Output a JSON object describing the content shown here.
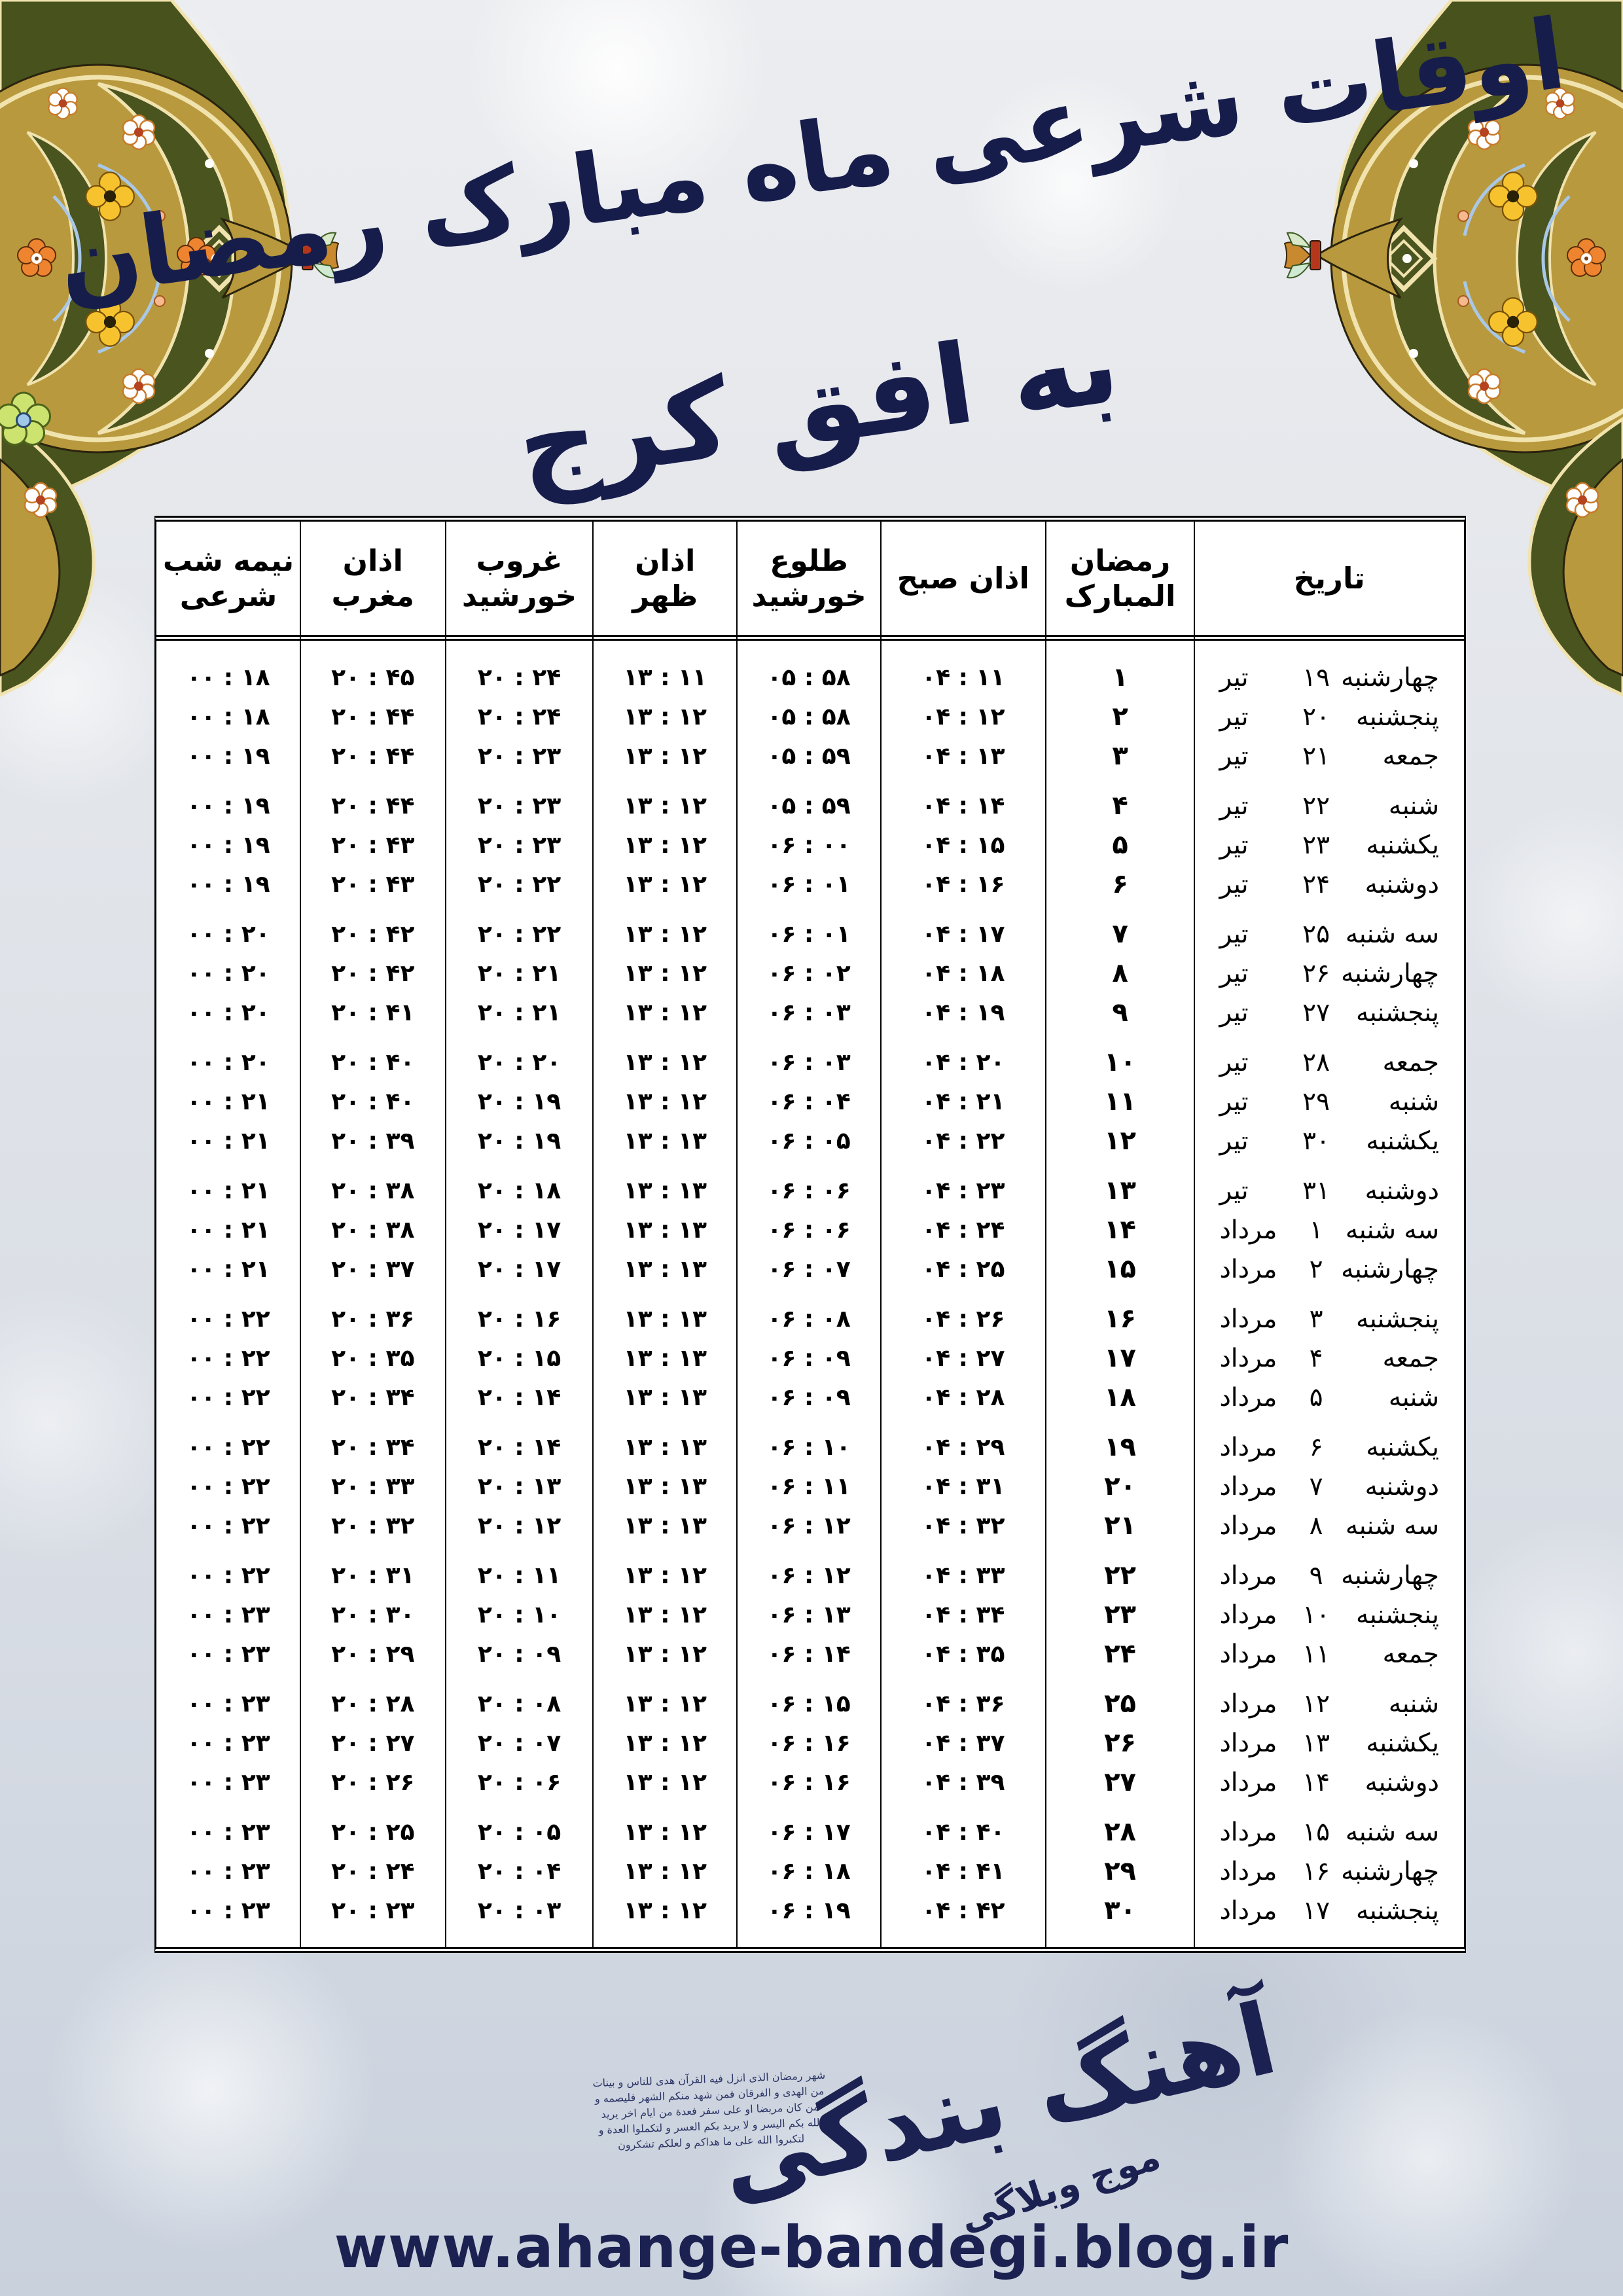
{
  "title": "اوقات شرعی ماه مبارک رمضان",
  "subtitle": "به افق کرج",
  "colors": {
    "navy": "#1b2150",
    "ornament_gold": "#b8993d",
    "ornament_olive": "#4a541f",
    "ornament_cream": "#f1e3ae",
    "flower_orange": "#ef8430",
    "flower_yellow": "#f6c32f",
    "table_border": "#000000"
  },
  "table": {
    "headers": {
      "date": "تاریخ",
      "ramadan": "رمضان المبارک",
      "azan_sobh": "اذان صبح",
      "tolu": "طلوع خورشید",
      "azan_zohr": "اذان ظهر",
      "ghorub": "غروب خورشید",
      "azan_maghreb": "اذان مغرب",
      "nimeshab": "نیمه شب شرعی"
    },
    "rows": [
      {
        "weekday": "چهارشنبه",
        "day": "۱۹",
        "month": "تیر",
        "ramadan": "۱",
        "azan_sobh": "۰۴ : ۱۱",
        "tolu": "۰۵ : ۵۸",
        "azan_zohr": "۱۳ : ۱۱",
        "ghorub": "۲۰ : ۲۴",
        "azan_maghreb": "۲۰ : ۴۵",
        "nimeshab": "۰۰ : ۱۸"
      },
      {
        "weekday": "پنجشنبه",
        "day": "۲۰",
        "month": "تیر",
        "ramadan": "۲",
        "azan_sobh": "۰۴ : ۱۲",
        "tolu": "۰۵ : ۵۸",
        "azan_zohr": "۱۳ : ۱۲",
        "ghorub": "۲۰ : ۲۴",
        "azan_maghreb": "۲۰ : ۴۴",
        "nimeshab": "۰۰ : ۱۸"
      },
      {
        "weekday": "جمعه",
        "day": "۲۱",
        "month": "تیر",
        "ramadan": "۳",
        "azan_sobh": "۰۴ : ۱۳",
        "tolu": "۰۵ : ۵۹",
        "azan_zohr": "۱۳ : ۱۲",
        "ghorub": "۲۰ : ۲۳",
        "azan_maghreb": "۲۰ : ۴۴",
        "nimeshab": "۰۰ : ۱۹"
      },
      {
        "weekday": "شنبه",
        "day": "۲۲",
        "month": "تیر",
        "ramadan": "۴",
        "azan_sobh": "۰۴ : ۱۴",
        "tolu": "۰۵ : ۵۹",
        "azan_zohr": "۱۳ : ۱۲",
        "ghorub": "۲۰ : ۲۳",
        "azan_maghreb": "۲۰ : ۴۴",
        "nimeshab": "۰۰ : ۱۹"
      },
      {
        "weekday": "یکشنبه",
        "day": "۲۳",
        "month": "تیر",
        "ramadan": "۵",
        "azan_sobh": "۰۴ : ۱۵",
        "tolu": "۰۶ : ۰۰",
        "azan_zohr": "۱۳ : ۱۲",
        "ghorub": "۲۰ : ۲۳",
        "azan_maghreb": "۲۰ : ۴۳",
        "nimeshab": "۰۰ : ۱۹"
      },
      {
        "weekday": "دوشنبه",
        "day": "۲۴",
        "month": "تیر",
        "ramadan": "۶",
        "azan_sobh": "۰۴ : ۱۶",
        "tolu": "۰۶ : ۰۱",
        "azan_zohr": "۱۳ : ۱۲",
        "ghorub": "۲۰ : ۲۲",
        "azan_maghreb": "۲۰ : ۴۳",
        "nimeshab": "۰۰ : ۱۹"
      },
      {
        "weekday": "سه شنبه",
        "day": "۲۵",
        "month": "تیر",
        "ramadan": "۷",
        "azan_sobh": "۰۴ : ۱۷",
        "tolu": "۰۶ : ۰۱",
        "azan_zohr": "۱۳ : ۱۲",
        "ghorub": "۲۰ : ۲۲",
        "azan_maghreb": "۲۰ : ۴۲",
        "nimeshab": "۰۰ : ۲۰"
      },
      {
        "weekday": "چهارشنبه",
        "day": "۲۶",
        "month": "تیر",
        "ramadan": "۸",
        "azan_sobh": "۰۴ : ۱۸",
        "tolu": "۰۶ : ۰۲",
        "azan_zohr": "۱۳ : ۱۲",
        "ghorub": "۲۰ : ۲۱",
        "azan_maghreb": "۲۰ : ۴۲",
        "nimeshab": "۰۰ : ۲۰"
      },
      {
        "weekday": "پنجشنبه",
        "day": "۲۷",
        "month": "تیر",
        "ramadan": "۹",
        "azan_sobh": "۰۴ : ۱۹",
        "tolu": "۰۶ : ۰۳",
        "azan_zohr": "۱۳ : ۱۲",
        "ghorub": "۲۰ : ۲۱",
        "azan_maghreb": "۲۰ : ۴۱",
        "nimeshab": "۰۰ : ۲۰"
      },
      {
        "weekday": "جمعه",
        "day": "۲۸",
        "month": "تیر",
        "ramadan": "۱۰",
        "azan_sobh": "۰۴ : ۲۰",
        "tolu": "۰۶ : ۰۳",
        "azan_zohr": "۱۳ : ۱۲",
        "ghorub": "۲۰ : ۲۰",
        "azan_maghreb": "۲۰ : ۴۰",
        "nimeshab": "۰۰ : ۲۰"
      },
      {
        "weekday": "شنبه",
        "day": "۲۹",
        "month": "تیر",
        "ramadan": "۱۱",
        "azan_sobh": "۰۴ : ۲۱",
        "tolu": "۰۶ : ۰۴",
        "azan_zohr": "۱۳ : ۱۲",
        "ghorub": "۲۰ : ۱۹",
        "azan_maghreb": "۲۰ : ۴۰",
        "nimeshab": "۰۰ : ۲۱"
      },
      {
        "weekday": "یکشنبه",
        "day": "۳۰",
        "month": "تیر",
        "ramadan": "۱۲",
        "azan_sobh": "۰۴ : ۲۲",
        "tolu": "۰۶ : ۰۵",
        "azan_zohr": "۱۳ : ۱۳",
        "ghorub": "۲۰ : ۱۹",
        "azan_maghreb": "۲۰ : ۳۹",
        "nimeshab": "۰۰ : ۲۱"
      },
      {
        "weekday": "دوشنبه",
        "day": "۳۱",
        "month": "تیر",
        "ramadan": "۱۳",
        "azan_sobh": "۰۴ : ۲۳",
        "tolu": "۰۶ : ۰۶",
        "azan_zohr": "۱۳ : ۱۳",
        "ghorub": "۲۰ : ۱۸",
        "azan_maghreb": "۲۰ : ۳۸",
        "nimeshab": "۰۰ : ۲۱"
      },
      {
        "weekday": "سه شنبه",
        "day": "۱",
        "month": "مرداد",
        "ramadan": "۱۴",
        "azan_sobh": "۰۴ : ۲۴",
        "tolu": "۰۶ : ۰۶",
        "azan_zohr": "۱۳ : ۱۳",
        "ghorub": "۲۰ : ۱۷",
        "azan_maghreb": "۲۰ : ۳۸",
        "nimeshab": "۰۰ : ۲۱"
      },
      {
        "weekday": "چهارشنبه",
        "day": "۲",
        "month": "مرداد",
        "ramadan": "۱۵",
        "azan_sobh": "۰۴ : ۲۵",
        "tolu": "۰۶ : ۰۷",
        "azan_zohr": "۱۳ : ۱۳",
        "ghorub": "۲۰ : ۱۷",
        "azan_maghreb": "۲۰ : ۳۷",
        "nimeshab": "۰۰ : ۲۱"
      },
      {
        "weekday": "پنجشنبه",
        "day": "۳",
        "month": "مرداد",
        "ramadan": "۱۶",
        "azan_sobh": "۰۴ : ۲۶",
        "tolu": "۰۶ : ۰۸",
        "azan_zohr": "۱۳ : ۱۳",
        "ghorub": "۲۰ : ۱۶",
        "azan_maghreb": "۲۰ : ۳۶",
        "nimeshab": "۰۰ : ۲۲"
      },
      {
        "weekday": "جمعه",
        "day": "۴",
        "month": "مرداد",
        "ramadan": "۱۷",
        "azan_sobh": "۰۴ : ۲۷",
        "tolu": "۰۶ : ۰۹",
        "azan_zohr": "۱۳ : ۱۳",
        "ghorub": "۲۰ : ۱۵",
        "azan_maghreb": "۲۰ : ۳۵",
        "nimeshab": "۰۰ : ۲۲"
      },
      {
        "weekday": "شنبه",
        "day": "۵",
        "month": "مرداد",
        "ramadan": "۱۸",
        "azan_sobh": "۰۴ : ۲۸",
        "tolu": "۰۶ : ۰۹",
        "azan_zohr": "۱۳ : ۱۳",
        "ghorub": "۲۰ : ۱۴",
        "azan_maghreb": "۲۰ : ۳۴",
        "nimeshab": "۰۰ : ۲۲"
      },
      {
        "weekday": "یکشنبه",
        "day": "۶",
        "month": "مرداد",
        "ramadan": "۱۹",
        "azan_sobh": "۰۴ : ۲۹",
        "tolu": "۰۶ : ۱۰",
        "azan_zohr": "۱۳ : ۱۳",
        "ghorub": "۲۰ : ۱۴",
        "azan_maghreb": "۲۰ : ۳۴",
        "nimeshab": "۰۰ : ۲۲"
      },
      {
        "weekday": "دوشنبه",
        "day": "۷",
        "month": "مرداد",
        "ramadan": "۲۰",
        "azan_sobh": "۰۴ : ۳۱",
        "tolu": "۰۶ : ۱۱",
        "azan_zohr": "۱۳ : ۱۳",
        "ghorub": "۲۰ : ۱۳",
        "azan_maghreb": "۲۰ : ۳۳",
        "nimeshab": "۰۰ : ۲۲"
      },
      {
        "weekday": "سه شنبه",
        "day": "۸",
        "month": "مرداد",
        "ramadan": "۲۱",
        "azan_sobh": "۰۴ : ۳۲",
        "tolu": "۰۶ : ۱۲",
        "azan_zohr": "۱۳ : ۱۳",
        "ghorub": "۲۰ : ۱۲",
        "azan_maghreb": "۲۰ : ۳۲",
        "nimeshab": "۰۰ : ۲۲"
      },
      {
        "weekday": "چهارشنبه",
        "day": "۹",
        "month": "مرداد",
        "ramadan": "۲۲",
        "azan_sobh": "۰۴ : ۳۳",
        "tolu": "۰۶ : ۱۲",
        "azan_zohr": "۱۳ : ۱۲",
        "ghorub": "۲۰ : ۱۱",
        "azan_maghreb": "۲۰ : ۳۱",
        "nimeshab": "۰۰ : ۲۲"
      },
      {
        "weekday": "پنجشنبه",
        "day": "۱۰",
        "month": "مرداد",
        "ramadan": "۲۳",
        "azan_sobh": "۰۴ : ۳۴",
        "tolu": "۰۶ : ۱۳",
        "azan_zohr": "۱۳ : ۱۲",
        "ghorub": "۲۰ : ۱۰",
        "azan_maghreb": "۲۰ : ۳۰",
        "nimeshab": "۰۰ : ۲۳"
      },
      {
        "weekday": "جمعه",
        "day": "۱۱",
        "month": "مرداد",
        "ramadan": "۲۴",
        "azan_sobh": "۰۴ : ۳۵",
        "tolu": "۰۶ : ۱۴",
        "azan_zohr": "۱۳ : ۱۲",
        "ghorub": "۲۰ : ۰۹",
        "azan_maghreb": "۲۰ : ۲۹",
        "nimeshab": "۰۰ : ۲۳"
      },
      {
        "weekday": "شنبه",
        "day": "۱۲",
        "month": "مرداد",
        "ramadan": "۲۵",
        "azan_sobh": "۰۴ : ۳۶",
        "tolu": "۰۶ : ۱۵",
        "azan_zohr": "۱۳ : ۱۲",
        "ghorub": "۲۰ : ۰۸",
        "azan_maghreb": "۲۰ : ۲۸",
        "nimeshab": "۰۰ : ۲۳"
      },
      {
        "weekday": "یکشنبه",
        "day": "۱۳",
        "month": "مرداد",
        "ramadan": "۲۶",
        "azan_sobh": "۰۴ : ۳۷",
        "tolu": "۰۶ : ۱۶",
        "azan_zohr": "۱۳ : ۱۲",
        "ghorub": "۲۰ : ۰۷",
        "azan_maghreb": "۲۰ : ۲۷",
        "nimeshab": "۰۰ : ۲۳"
      },
      {
        "weekday": "دوشنبه",
        "day": "۱۴",
        "month": "مرداد",
        "ramadan": "۲۷",
        "azan_sobh": "۰۴ : ۳۹",
        "tolu": "۰۶ : ۱۶",
        "azan_zohr": "۱۳ : ۱۲",
        "ghorub": "۲۰ : ۰۶",
        "azan_maghreb": "۲۰ : ۲۶",
        "nimeshab": "۰۰ : ۲۳"
      },
      {
        "weekday": "سه شنبه",
        "day": "۱۵",
        "month": "مرداد",
        "ramadan": "۲۸",
        "azan_sobh": "۰۴ : ۴۰",
        "tolu": "۰۶ : ۱۷",
        "azan_zohr": "۱۳ : ۱۲",
        "ghorub": "۲۰ : ۰۵",
        "azan_maghreb": "۲۰ : ۲۵",
        "nimeshab": "۰۰ : ۲۳"
      },
      {
        "weekday": "چهارشنبه",
        "day": "۱۶",
        "month": "مرداد",
        "ramadan": "۲۹",
        "azan_sobh": "۰۴ : ۴۱",
        "tolu": "۰۶ : ۱۸",
        "azan_zohr": "۱۳ : ۱۲",
        "ghorub": "۲۰ : ۰۴",
        "azan_maghreb": "۲۰ : ۲۴",
        "nimeshab": "۰۰ : ۲۳"
      },
      {
        "weekday": "پنجشنبه",
        "day": "۱۷",
        "month": "مرداد",
        "ramadan": "۳۰",
        "azan_sobh": "۰۴ : ۴۲",
        "tolu": "۰۶ : ۱۹",
        "azan_zohr": "۱۳ : ۱۲",
        "ghorub": "۲۰ : ۰۳",
        "azan_maghreb": "۲۰ : ۲۳",
        "nimeshab": "۰۰ : ۲۳"
      }
    ]
  },
  "footer": {
    "verse": "شهر رمضان الذی انزل فیه القرآن هدی للناس و بینات من الهدی و الفرقان فمن شهد منکم الشهر فلیصمه و من کان مریضا او علی سفر فعدة من ایام اخر یرید الله بکم الیسر و لا یرید بکم العسر و لتکملوا العدة و لتکبروا الله علی ما هداکم و لعلکم تشکرون",
    "logo_main": "آهنگ بندگی",
    "logo_sub": "موج وبلاگی",
    "url": "www.ahange-bandegi.blog.ir"
  }
}
